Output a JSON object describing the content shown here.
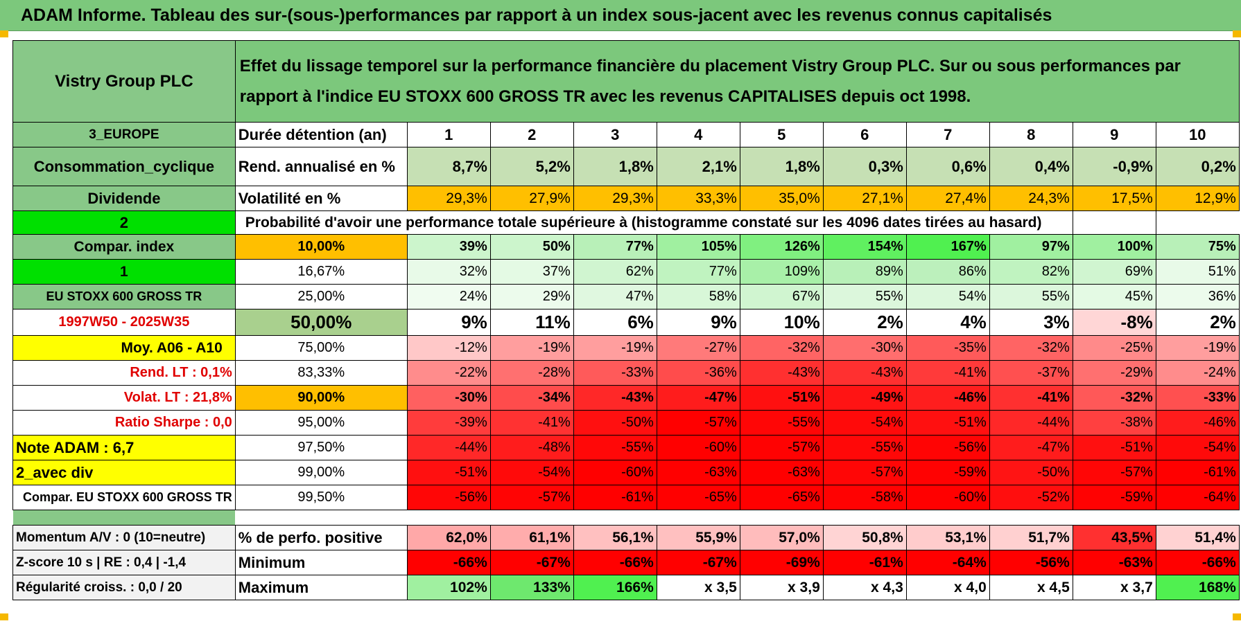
{
  "title": "ADAM Informe. Tableau des sur-(sous-)performances par rapport à un index sous-jacent avec les revenus connus capitalisés",
  "company": "Vistry Group PLC",
  "description": "Effet du lissage temporel sur la performance financière du placement Vistry Group PLC. Sur ou sous performances par rapport à l'indice EU STOXX 600 GROSS TR avec les revenus CAPITALISES depuis oct 1998.",
  "colors": {
    "header_green": "#7cc87c",
    "label_green": "#88c888",
    "bright_green": "#00e000",
    "yellow": "#ffff00",
    "orange": "#ffbf00"
  },
  "years_row": {
    "label": "3_EUROPE",
    "title": "Durée détention (an)",
    "values": [
      "1",
      "2",
      "3",
      "4",
      "5",
      "6",
      "7",
      "8",
      "9",
      "10"
    ]
  },
  "return_row": {
    "label": "Consommation_cyclique",
    "title": "Rend. annualisé en %",
    "values": [
      "8,7%",
      "5,2%",
      "1,8%",
      "2,1%",
      "1,8%",
      "0,3%",
      "0,6%",
      "0,4%",
      "-0,9%",
      "0,2%"
    ]
  },
  "volatility_row": {
    "label": "Dividende",
    "title": "Volatilité en %",
    "values": [
      "29,3%",
      "27,9%",
      "29,3%",
      "33,3%",
      "35,0%",
      "27,1%",
      "27,4%",
      "24,3%",
      "17,5%",
      "12,9%"
    ]
  },
  "prob_row": {
    "label": "2",
    "title": "Probabilité d'avoir une performance totale supérieure à (histogramme constaté sur les 4096 dates tirées au hasard)"
  },
  "left_labels": [
    "Compar. index",
    "1",
    "EU STOXX 600 GROSS TR",
    "1997W50 - 2025W35",
    "Moy. A06 - A10",
    "Rend. LT :    0,1%",
    "Volat. LT :    21,8%",
    "Ratio Sharpe :    0,0",
    "Note ADAM : 6,7",
    "2_avec div",
    "Compar. EU STOXX 600 GROSS TR"
  ],
  "pct_labels": [
    "10,00%",
    "16,67%",
    "25,00%",
    "50,00%",
    "75,00%",
    "83,33%",
    "90,00%",
    "95,00%",
    "97,50%",
    "99,00%",
    "99,50%"
  ],
  "grid": [
    [
      "39%",
      "50%",
      "77%",
      "105%",
      "126%",
      "154%",
      "167%",
      "97%",
      "100%",
      "75%"
    ],
    [
      "32%",
      "37%",
      "62%",
      "77%",
      "109%",
      "89%",
      "86%",
      "82%",
      "69%",
      "51%"
    ],
    [
      "24%",
      "29%",
      "47%",
      "58%",
      "67%",
      "55%",
      "54%",
      "55%",
      "45%",
      "36%"
    ],
    [
      "9%",
      "11%",
      "6%",
      "9%",
      "10%",
      "2%",
      "4%",
      "3%",
      "-8%",
      "2%"
    ],
    [
      "-12%",
      "-19%",
      "-19%",
      "-27%",
      "-32%",
      "-30%",
      "-35%",
      "-32%",
      "-25%",
      "-19%"
    ],
    [
      "-22%",
      "-28%",
      "-33%",
      "-36%",
      "-43%",
      "-43%",
      "-41%",
      "-37%",
      "-29%",
      "-24%"
    ],
    [
      "-30%",
      "-34%",
      "-43%",
      "-47%",
      "-51%",
      "-49%",
      "-46%",
      "-41%",
      "-32%",
      "-33%"
    ],
    [
      "-39%",
      "-41%",
      "-50%",
      "-57%",
      "-55%",
      "-54%",
      "-51%",
      "-44%",
      "-38%",
      "-46%"
    ],
    [
      "-44%",
      "-48%",
      "-55%",
      "-60%",
      "-57%",
      "-55%",
      "-56%",
      "-47%",
      "-51%",
      "-54%"
    ],
    [
      "-51%",
      "-54%",
      "-60%",
      "-63%",
      "-63%",
      "-57%",
      "-59%",
      "-50%",
      "-57%",
      "-61%"
    ],
    [
      "-56%",
      "-57%",
      "-61%",
      "-65%",
      "-65%",
      "-58%",
      "-60%",
      "-52%",
      "-59%",
      "-64%"
    ]
  ],
  "grid_colors": [
    [
      "#ccf5cc",
      "#ccf5cc",
      "#b8f0b8",
      "#a0f0a0",
      "#80f080",
      "#60f060",
      "#50f050",
      "#a0f0a0",
      "#a0f0a0",
      "#b8f0b8"
    ],
    [
      "#e8fae8",
      "#e4fae4",
      "#d0f5d0",
      "#c0f3c0",
      "#a8f0a8",
      "#b8f0b8",
      "#bcf0bc",
      "#c0f3c0",
      "#d0f5d0",
      "#e8fae8"
    ],
    [
      "#f0fcf0",
      "#ecfbec",
      "#e0f8e0",
      "#d8f7d8",
      "#d0f5d0",
      "#dcf7dc",
      "#dcf7dc",
      "#dcf7dc",
      "#e4fae4",
      "#ecfbec"
    ],
    [
      "#ffffff",
      "#ffffff",
      "#ffffff",
      "#ffffff",
      "#ffffff",
      "#ffffff",
      "#ffffff",
      "#ffffff",
      "#ffd6d6",
      "#ffffff"
    ],
    [
      "#ffc8c8",
      "#ff9e9e",
      "#ff9e9e",
      "#ff7a7a",
      "#ff6464",
      "#ff6e6e",
      "#ff5a5a",
      "#ff6464",
      "#ff8a8a",
      "#ff9e9e"
    ],
    [
      "#ff8c8c",
      "#ff7070",
      "#ff5a5a",
      "#ff4c4c",
      "#ff3030",
      "#ff3030",
      "#ff3a3a",
      "#ff5050",
      "#ff7070",
      "#ff8c8c"
    ],
    [
      "#ff6060",
      "#ff4c4c",
      "#ff2828",
      "#ff1c1c",
      "#ff1010",
      "#ff1414",
      "#ff1e1e",
      "#ff3030",
      "#ff5858",
      "#ff5050"
    ],
    [
      "#ff3c3c",
      "#ff3232",
      "#ff1010",
      "#ff0000",
      "#ff0606",
      "#ff0a0a",
      "#ff1010",
      "#ff2828",
      "#ff4040",
      "#ff1c1c"
    ],
    [
      "#ff2828",
      "#ff1c1c",
      "#ff0808",
      "#ff0000",
      "#ff0202",
      "#ff0808",
      "#ff0404",
      "#ff1c1c",
      "#ff1010",
      "#ff0a0a"
    ],
    [
      "#ff1010",
      "#ff0a0a",
      "#ff0000",
      "#ff0000",
      "#ff0000",
      "#ff0606",
      "#ff0202",
      "#ff1414",
      "#ff0606",
      "#ff0000"
    ],
    [
      "#ff0606",
      "#ff0404",
      "#ff0000",
      "#ff0000",
      "#ff0000",
      "#ff0202",
      "#ff0000",
      "#ff0e0e",
      "#ff0202",
      "#ff0000"
    ]
  ],
  "bottom_rows": [
    {
      "label": "Momentum A/V : 0 (10=neutre)",
      "title": "% de perfo. positive",
      "values": [
        "62,0%",
        "61,1%",
        "56,1%",
        "55,9%",
        "57,0%",
        "50,8%",
        "53,1%",
        "51,7%",
        "43,5%",
        "51,4%"
      ],
      "colors": [
        "#ffa8a8",
        "#ffacac",
        "#ffc0c0",
        "#ffc0c0",
        "#ffbcbc",
        "#ffd4d4",
        "#ffcccc",
        "#ffd0d0",
        "#ff3030",
        "#ffd2d2"
      ]
    },
    {
      "label": "Z-score 10 s | RE : 0,4 | -1,4",
      "title": "Minimum",
      "values": [
        "-66%",
        "-67%",
        "-66%",
        "-67%",
        "-69%",
        "-61%",
        "-64%",
        "-56%",
        "-63%",
        "-66%"
      ],
      "colors": [
        "#ff0000",
        "#ff0000",
        "#ff0000",
        "#ff0000",
        "#ff0000",
        "#ff0000",
        "#ff0000",
        "#ff0000",
        "#ff0000",
        "#ff0000"
      ]
    },
    {
      "label": "Régularité croiss. : 0,0 / 20",
      "title": "Maximum",
      "values": [
        "102%",
        "133%",
        "166%",
        "x 3,5",
        "x 3,9",
        "x 4,3",
        "x 4,0",
        "x 4,5",
        "x 3,7",
        "168%"
      ],
      "colors": [
        "#a0f0a0",
        "#6ee86e",
        "#50f050",
        "#ffffff",
        "#ffffff",
        "#ffffff",
        "#ffffff",
        "#ffffff",
        "#ffffff",
        "#50f050"
      ]
    }
  ]
}
